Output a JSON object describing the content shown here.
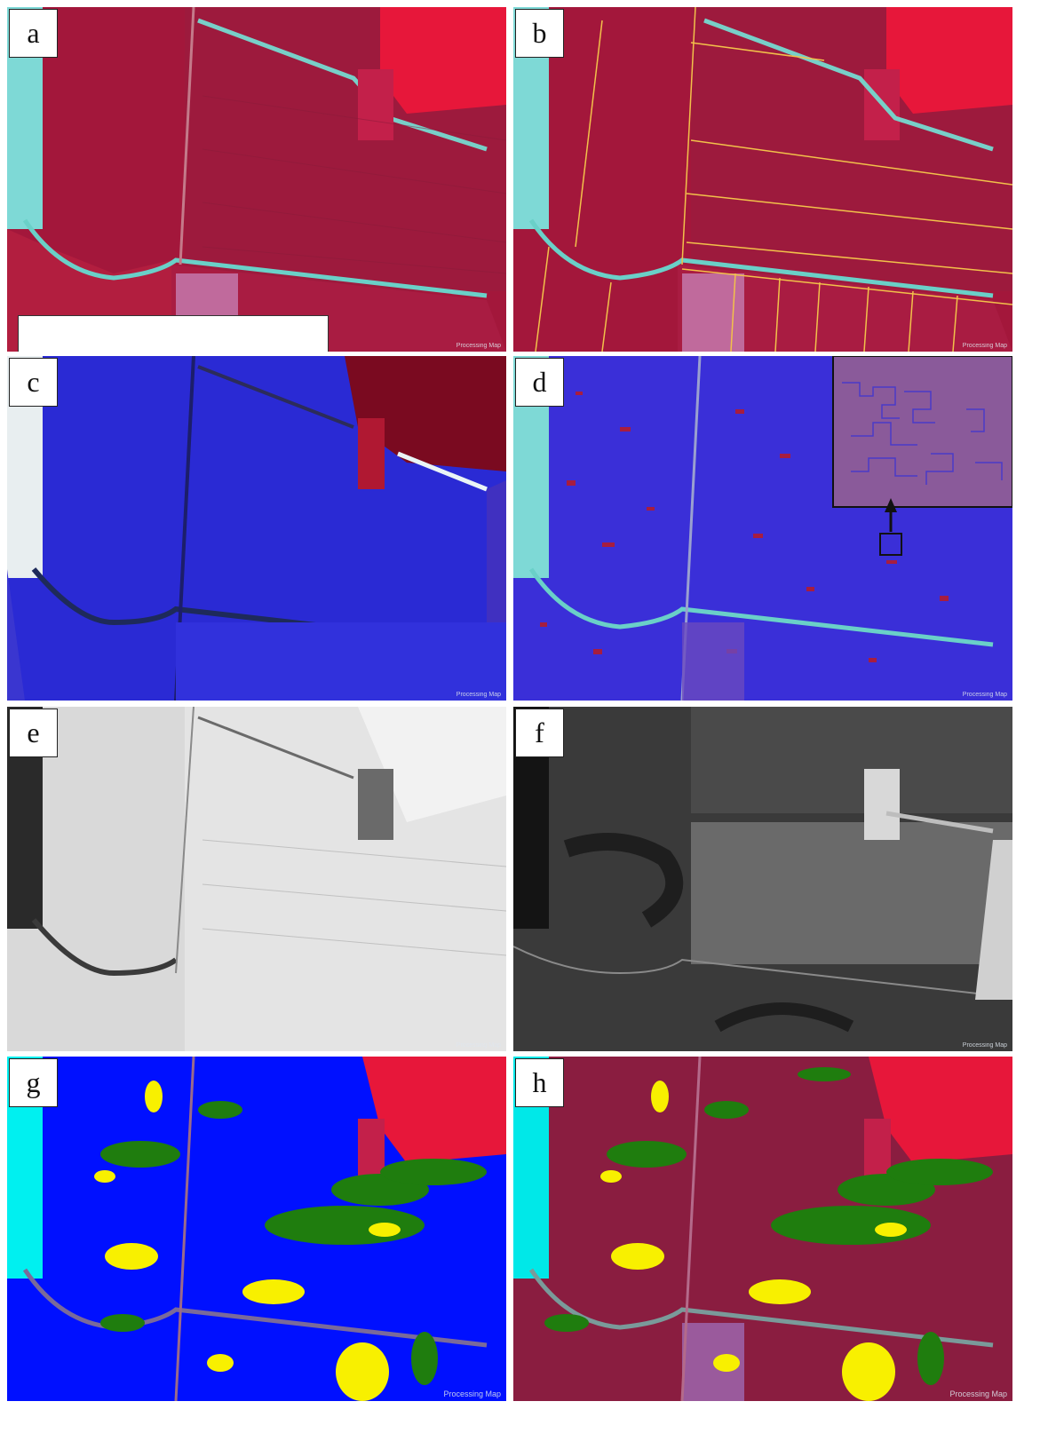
{
  "panels": [
    {
      "label": "a",
      "watermark": "Processing Map"
    },
    {
      "label": "b",
      "watermark": "Processing Map"
    },
    {
      "label": "c",
      "watermark": "Processing Map"
    },
    {
      "label": "d",
      "watermark": "Processing Map"
    },
    {
      "label": "e",
      "watermark": "Processing Map"
    },
    {
      "label": "f",
      "watermark": "Processing Map"
    },
    {
      "label": "g",
      "watermark": "Processing Map"
    },
    {
      "label": "h",
      "watermark": "Processing Map"
    }
  ],
  "colors": {
    "field_red": "#b0163a",
    "field_dark": "#8a1d40",
    "bright_red": "#e8173a",
    "water_cyan": "#6fe3e0",
    "segment_blue": "#3a2fd8",
    "class_blue": "#0010ff",
    "class_green": "#1f7d0e",
    "class_yellow": "#f8f000",
    "outline_yellow": "#f2c14a"
  }
}
